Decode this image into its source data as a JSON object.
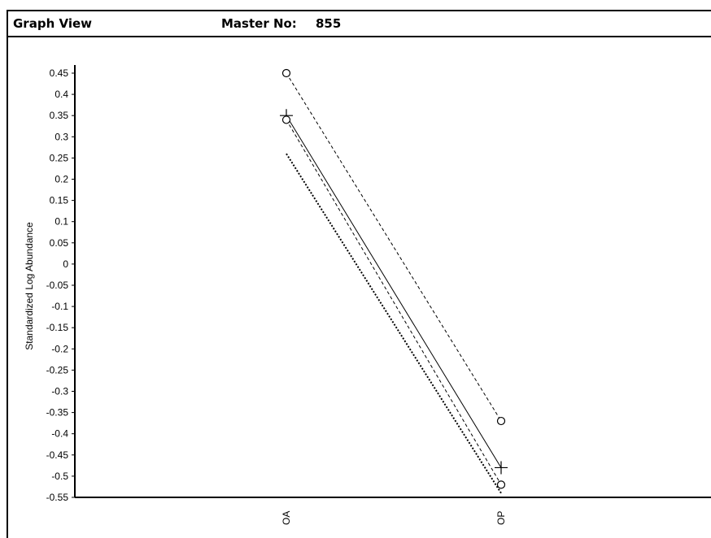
{
  "header": {
    "title": "Graph View",
    "master_label": "Master No:",
    "master_value": "855"
  },
  "chart_data": {
    "type": "line",
    "title": "",
    "xlabel": "",
    "ylabel": "Standardized Log Abundance",
    "categories": [
      "OA",
      "OP"
    ],
    "ylim": [
      -0.55,
      0.45
    ],
    "yticks": [
      0.45,
      0.4,
      0.35,
      0.3,
      0.25,
      0.2,
      0.15,
      0.1,
      0.05,
      0,
      -0.05,
      -0.1,
      -0.15,
      -0.2,
      -0.25,
      -0.3,
      -0.35,
      -0.4,
      -0.45,
      -0.5,
      -0.55
    ],
    "ytick_labels": [
      "0.45",
      "0.4",
      "0.35",
      "0.3",
      "0.25",
      "0.2",
      "0.15",
      "0.1",
      "0.05",
      "0",
      "-0.05",
      "-0.1",
      "-0.15",
      "-0.2",
      "-0.25",
      "-0.3",
      "-0.35",
      "-0.4",
      "-0.45",
      "-0.5",
      "-0.55"
    ],
    "grid": false,
    "series": [
      {
        "values": [
          0.45,
          -0.37
        ],
        "style": "dashed",
        "marker": "circle"
      },
      {
        "values": [
          0.35,
          -0.48
        ],
        "style": "solid",
        "marker": "plus"
      },
      {
        "values": [
          0.34,
          -0.52
        ],
        "style": "dashed",
        "marker": "circle"
      },
      {
        "values": [
          0.26,
          -0.54
        ],
        "style": "dotted",
        "marker": "none"
      }
    ],
    "color": "#000000"
  }
}
